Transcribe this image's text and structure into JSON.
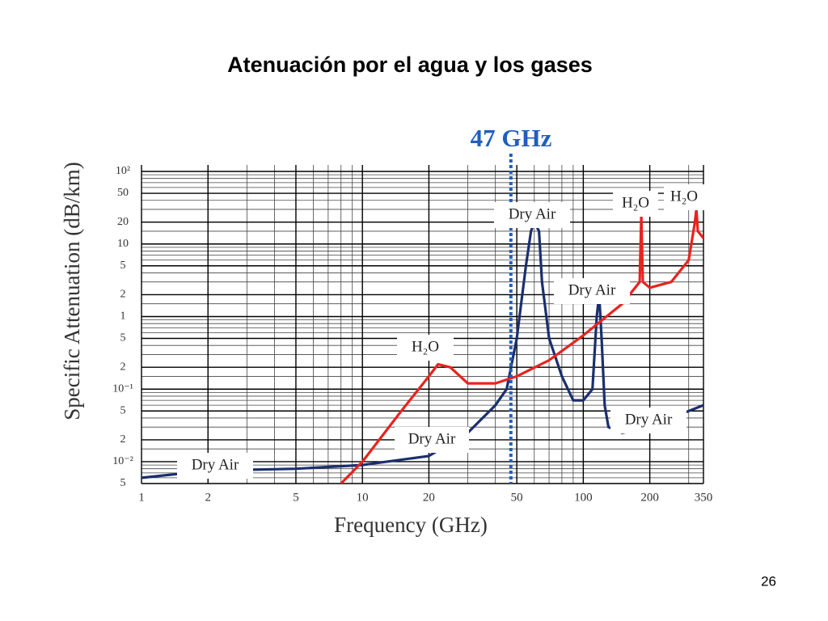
{
  "page_title": "Atenuación por el agua y los gases",
  "page_number": "26",
  "chart_data": {
    "type": "line",
    "ylabel": "Specific Attenuation (dB/km)",
    "xlabel": "Frequency (GHz)",
    "log_x": true,
    "log_y": true,
    "grid": true,
    "xlim": [
      1,
      350
    ],
    "xticks": [
      1,
      2,
      5,
      10,
      20,
      50,
      100,
      200,
      350
    ],
    "ylim": [
      0.005,
      100
    ],
    "yticks": [
      {
        "value": 100,
        "label": "10²"
      },
      50,
      20,
      10,
      5,
      2,
      1,
      {
        "value": 0.5,
        "label": "5"
      },
      {
        "value": 0.2,
        "label": "2"
      },
      {
        "value": 0.1,
        "label": "10⁻¹"
      },
      {
        "value": 0.05,
        "label": "5"
      },
      {
        "value": 0.02,
        "label": "2"
      },
      {
        "value": 0.01,
        "label": "10⁻²"
      },
      {
        "value": 0.005,
        "label": "5"
      }
    ],
    "reference_line": 0.1,
    "marker": {
      "label": "47 GHz",
      "x": 47,
      "color": "#1f5fbf"
    },
    "series": [
      {
        "name": "Dry Air",
        "color": "#1a2f6e",
        "x": [
          1,
          2,
          5,
          10,
          20,
          30,
          40,
          45,
          50,
          55,
          58,
          60,
          63,
          65,
          70,
          80,
          90,
          100,
          110,
          115,
          118,
          121,
          125,
          130,
          150,
          200,
          300,
          350
        ],
        "values": [
          0.006,
          0.0075,
          0.008,
          0.009,
          0.012,
          0.025,
          0.06,
          0.1,
          0.5,
          5,
          15,
          20,
          15,
          3,
          0.5,
          0.15,
          0.07,
          0.07,
          0.1,
          1,
          2,
          0.5,
          0.06,
          0.03,
          0.025,
          0.03,
          0.05,
          0.06
        ]
      },
      {
        "name": "H₂O",
        "color": "#e8231e",
        "x": [
          8,
          10,
          15,
          20,
          22,
          25,
          30,
          40,
          50,
          70,
          100,
          150,
          180,
          183,
          186,
          200,
          250,
          300,
          320,
          325,
          330,
          350
        ],
        "values": [
          0.005,
          0.01,
          0.05,
          0.15,
          0.22,
          0.2,
          0.12,
          0.12,
          0.15,
          0.25,
          0.55,
          1.5,
          3,
          25,
          3,
          2.5,
          3,
          6,
          20,
          30,
          15,
          12
        ]
      }
    ],
    "annotations": [
      "Dry Air",
      "Dry Air",
      "Dry Air",
      "Dry Air",
      "Dry Air",
      "H₂O",
      "H₂O",
      "H₂O"
    ]
  }
}
